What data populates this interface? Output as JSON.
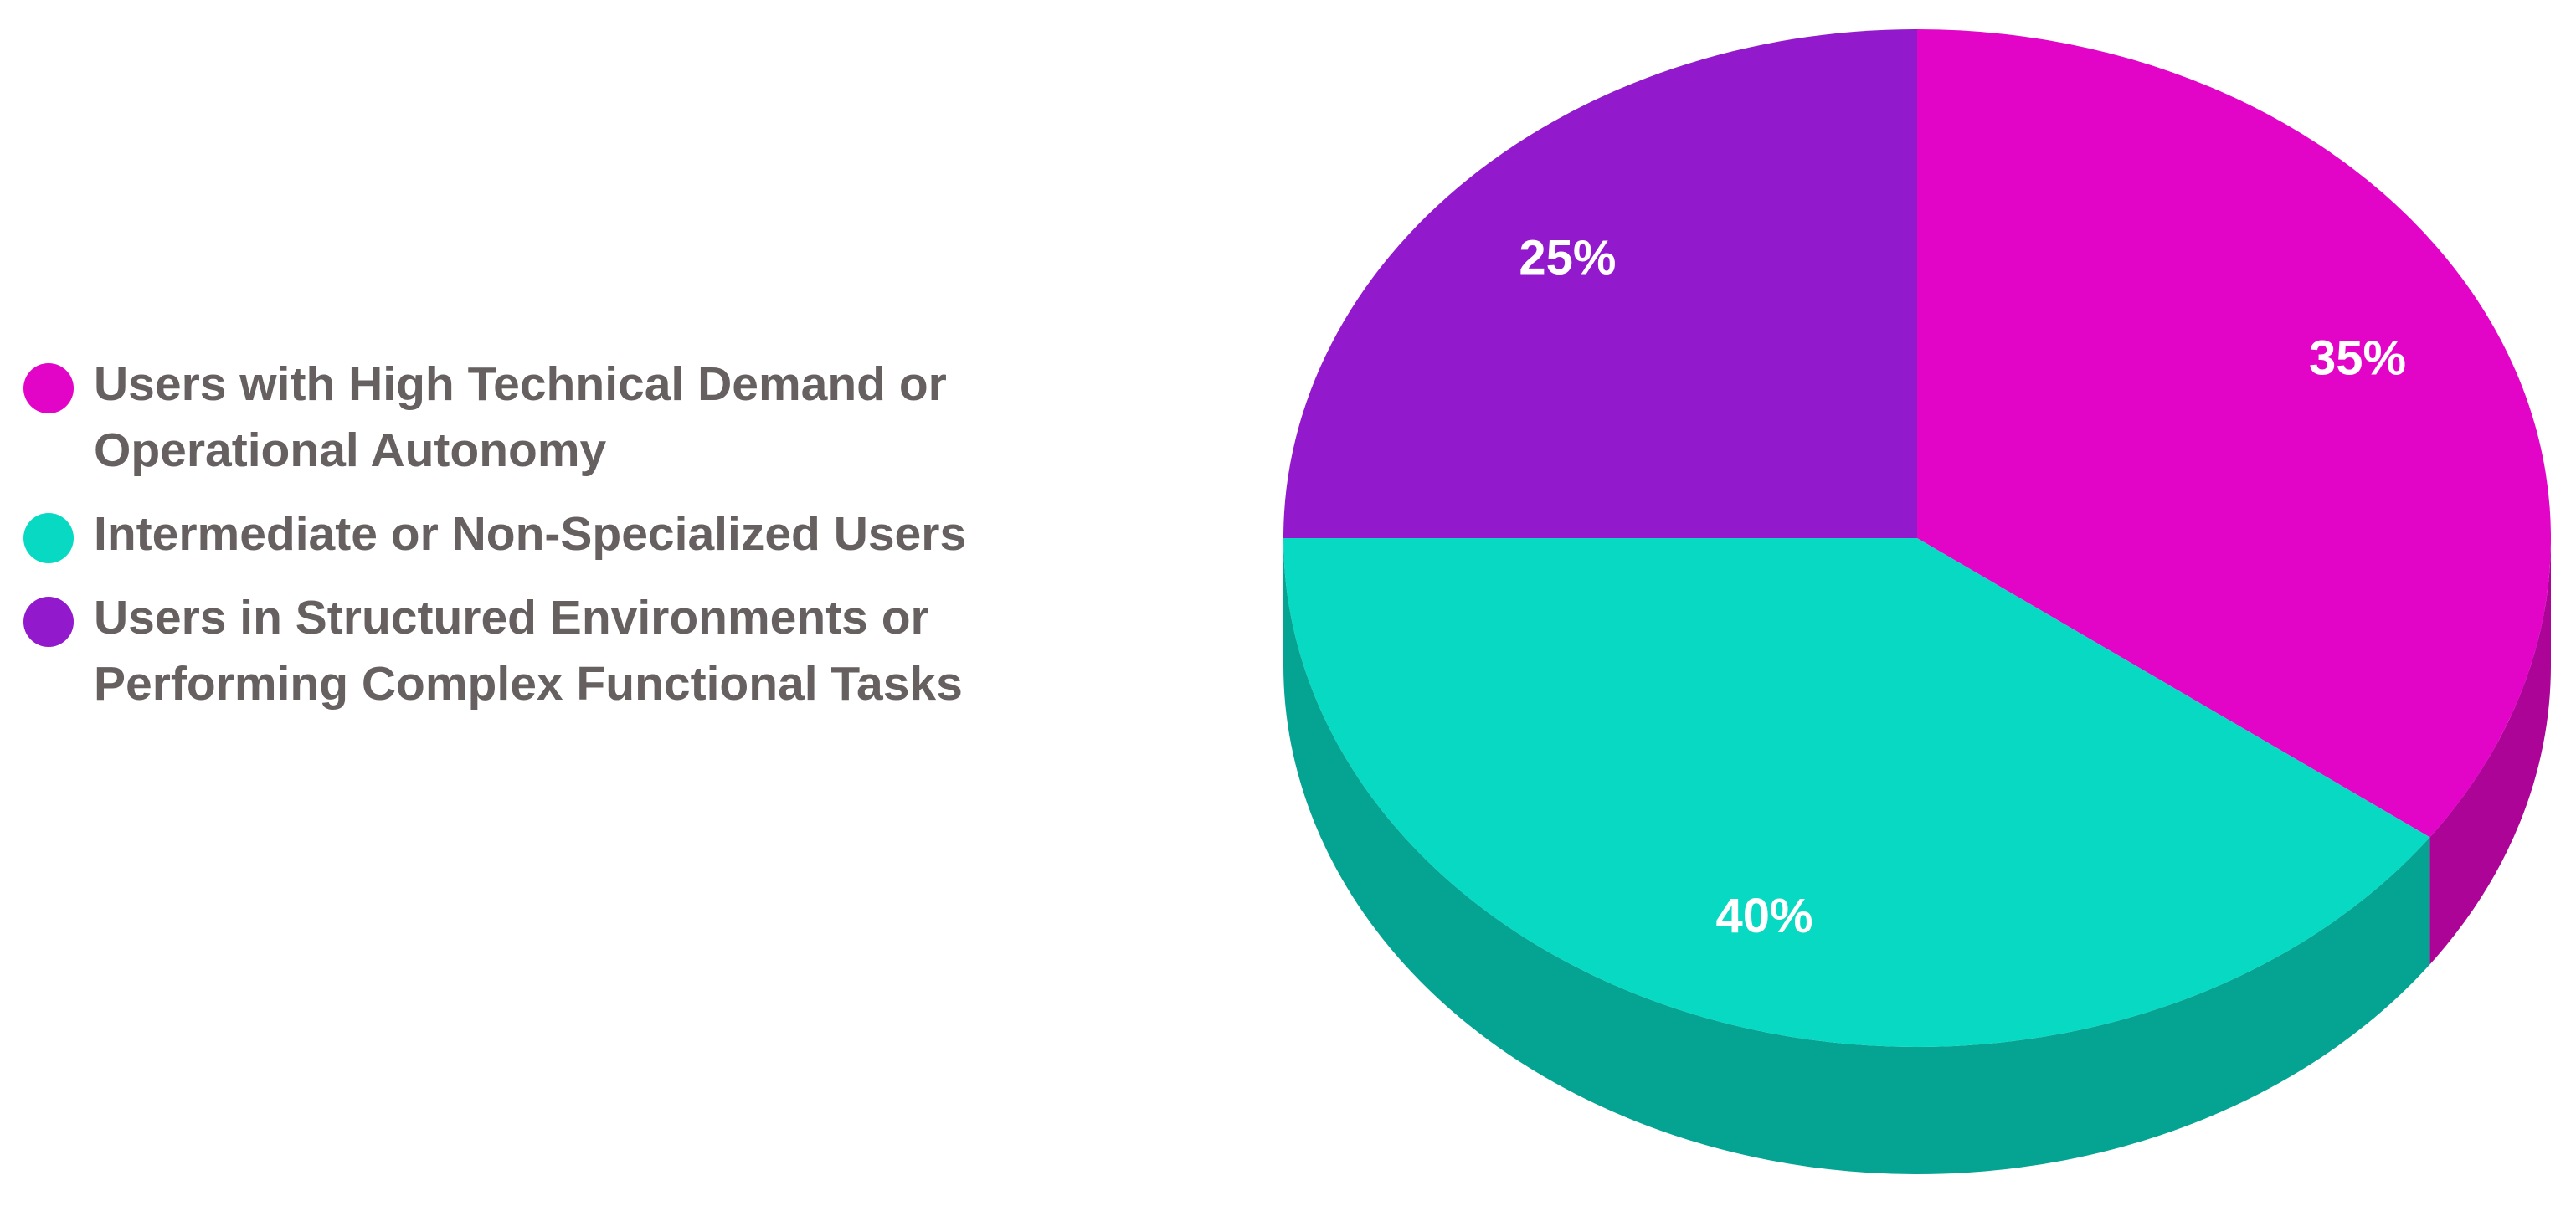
{
  "chart_data": {
    "type": "pie",
    "style": "3d",
    "legend_position": "left",
    "slices": [
      {
        "label": "Users with High Technical Demand or Operational Autonomy",
        "value": 35,
        "value_label": "35%",
        "color": "#e205c8",
        "side_color": "#ab0496"
      },
      {
        "label": "Intermediate or Non-Specialized Users",
        "value": 40,
        "value_label": "40%",
        "color": "#08d9c3",
        "side_color": "#05a392"
      },
      {
        "label": "Users in Structured Environments or Performing Complex Functional Tasks",
        "value": 25,
        "value_label": "25%",
        "color": "#9219cc",
        "side_color": "#6b1196"
      }
    ]
  }
}
